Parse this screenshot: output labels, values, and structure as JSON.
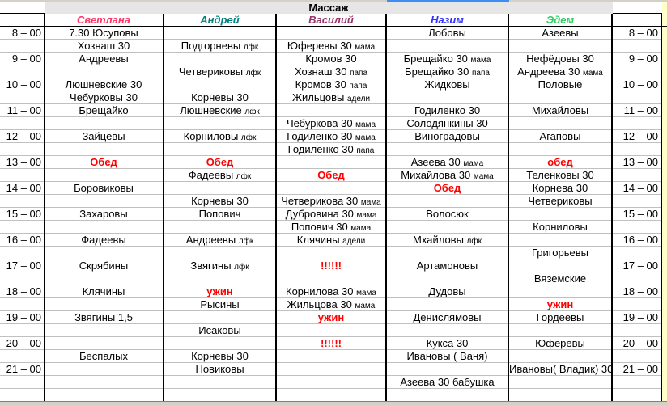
{
  "title": "Массаж",
  "accent_selected_column": "#3d8df5",
  "masseurs": [
    {
      "name": "Светлана",
      "color": "#ff3366"
    },
    {
      "name": "Андрей",
      "color": "#008080"
    },
    {
      "name": "Василий",
      "color": "#993366"
    },
    {
      "name": "Назим",
      "color": "#3333ff"
    },
    {
      "name": "Эдем",
      "color": "#33cc66"
    }
  ],
  "rows": [
    {
      "time": "8 – 00",
      "cells": [
        {
          "t": "7.30 Юсуповы"
        },
        {
          "t": ""
        },
        {
          "t": ""
        },
        {
          "t": "Лобовы"
        },
        {
          "t": "Азеевы"
        }
      ]
    },
    {
      "time": "",
      "cells": [
        {
          "t": "Хознаш 30"
        },
        {
          "t": "Подгорневы ",
          "s": "лфк"
        },
        {
          "t": "Юферевы 30 ",
          "s": "мама"
        },
        {
          "t": ""
        },
        {
          "t": ""
        }
      ]
    },
    {
      "time": "9 – 00",
      "cells": [
        {
          "t": "Андреевы"
        },
        {
          "t": ""
        },
        {
          "t": "Кромов 30"
        },
        {
          "t": "Брещайко 30 ",
          "s": "мама"
        },
        {
          "t": "Нефёдовы 30"
        }
      ]
    },
    {
      "time": "",
      "cells": [
        {
          "t": ""
        },
        {
          "t": "Четвериковы ",
          "s": "лфк"
        },
        {
          "t": "Хознаш 30 ",
          "s": "папа"
        },
        {
          "t": "Брещайко 30 ",
          "s": "папа"
        },
        {
          "t": "Андреева 30 ",
          "s": "мама"
        }
      ]
    },
    {
      "time": "10 – 00",
      "cells": [
        {
          "t": "Люшневские 30"
        },
        {
          "t": ""
        },
        {
          "t": "Кромов 30  ",
          "s": "папа"
        },
        {
          "t": "Жидковы"
        },
        {
          "t": "Половые"
        }
      ]
    },
    {
      "time": "",
      "cells": [
        {
          "t": "Чебурковы 30"
        },
        {
          "t": "Корневы 30"
        },
        {
          "t": "Жильцовы ",
          "s": "адели"
        },
        {
          "t": ""
        },
        {
          "t": ""
        }
      ]
    },
    {
      "time": "11 – 00",
      "cells": [
        {
          "t": "Брещайко"
        },
        {
          "t": "Люшневские ",
          "s": "лфк"
        },
        {
          "t": ""
        },
        {
          "t": "Годиленко 30"
        },
        {
          "t": "Михайловы"
        }
      ]
    },
    {
      "time": "",
      "cells": [
        {
          "t": ""
        },
        {
          "t": ""
        },
        {
          "t": "Чебуркова 30 ",
          "s": "мама"
        },
        {
          "t": "Солодянкины 30"
        },
        {
          "t": ""
        }
      ]
    },
    {
      "time": "12 – 00",
      "cells": [
        {
          "t": "Зайцевы"
        },
        {
          "t": "Корниловы ",
          "s": "лфк"
        },
        {
          "t": "Годиленко 30 ",
          "s": "мама"
        },
        {
          "t": "Виноградовы"
        },
        {
          "t": "Агаповы"
        }
      ]
    },
    {
      "time": "",
      "cells": [
        {
          "t": ""
        },
        {
          "t": ""
        },
        {
          "t": "Годиленко 30 ",
          "s": "папа"
        },
        {
          "t": ""
        },
        {
          "t": ""
        }
      ]
    },
    {
      "time": "13 – 00",
      "cells": [
        {
          "t": "Обед",
          "red": true
        },
        {
          "t": "Обед",
          "red": true
        },
        {
          "t": ""
        },
        {
          "t": "Азеева 30 ",
          "s": "мама"
        },
        {
          "t": "обед",
          "red": true
        }
      ]
    },
    {
      "time": "",
      "cells": [
        {
          "t": ""
        },
        {
          "t": "Фадеевы ",
          "s": "лфк"
        },
        {
          "t": "Обед",
          "red": true
        },
        {
          "t": "Михайлова 30 ",
          "s": "мама"
        },
        {
          "t": "Теленковы 30"
        }
      ]
    },
    {
      "time": "14 – 00",
      "cells": [
        {
          "t": "Боровиковы"
        },
        {
          "t": ""
        },
        {
          "t": ""
        },
        {
          "t": "Обед",
          "red": true
        },
        {
          "t": "Корнева 30"
        }
      ]
    },
    {
      "time": "",
      "cells": [
        {
          "t": ""
        },
        {
          "t": "Корневы 30"
        },
        {
          "t": "Четверикова 30 ",
          "s": "мама"
        },
        {
          "t": ""
        },
        {
          "t": "Четвериковы"
        }
      ]
    },
    {
      "time": "15 – 00",
      "cells": [
        {
          "t": "Захаровы"
        },
        {
          "t": "Попович"
        },
        {
          "t": "Дубровина 30 ",
          "s": "мама"
        },
        {
          "t": "Волосюк"
        },
        {
          "t": ""
        }
      ]
    },
    {
      "time": "",
      "cells": [
        {
          "t": ""
        },
        {
          "t": ""
        },
        {
          "t": "Попович 30 ",
          "s": "мама"
        },
        {
          "t": ""
        },
        {
          "t": "Корниловы"
        }
      ]
    },
    {
      "time": "16 – 00",
      "cells": [
        {
          "t": "Фадеевы"
        },
        {
          "t": "Андреевы ",
          "s": "лфк"
        },
        {
          "t": "Клячины ",
          "s": "адели"
        },
        {
          "t": "Мхайловы ",
          "s": "лфк"
        },
        {
          "t": ""
        }
      ]
    },
    {
      "time": "",
      "cells": [
        {
          "t": ""
        },
        {
          "t": ""
        },
        {
          "t": ""
        },
        {
          "t": ""
        },
        {
          "t": "Григорьевы"
        }
      ]
    },
    {
      "time": "17 – 00",
      "cells": [
        {
          "t": "Скрябины"
        },
        {
          "t": "Звягины ",
          "s": "лфк"
        },
        {
          "t": "!!!!!!",
          "red": true
        },
        {
          "t": "Артамоновы"
        },
        {
          "t": ""
        }
      ]
    },
    {
      "time": "",
      "cells": [
        {
          "t": ""
        },
        {
          "t": ""
        },
        {
          "t": ""
        },
        {
          "t": ""
        },
        {
          "t": "Вяземские"
        }
      ]
    },
    {
      "time": "18 – 00",
      "cells": [
        {
          "t": "Клячины"
        },
        {
          "t": "ужин",
          "red": true
        },
        {
          "t": "Корнилова 30 ",
          "s": "мама"
        },
        {
          "t": "Дудовы"
        },
        {
          "t": ""
        }
      ]
    },
    {
      "time": "",
      "cells": [
        {
          "t": ""
        },
        {
          "t": "Рысины"
        },
        {
          "t": "Жильцова 30 ",
          "s": "мама"
        },
        {
          "t": ""
        },
        {
          "t": "ужин",
          "red": true
        }
      ]
    },
    {
      "time": "19 – 00",
      "cells": [
        {
          "t": "Звягины 1,5"
        },
        {
          "t": ""
        },
        {
          "t": "ужин",
          "red": true
        },
        {
          "t": "Денислямовы"
        },
        {
          "t": "Гордеевы"
        }
      ]
    },
    {
      "time": "",
      "cells": [
        {
          "t": ""
        },
        {
          "t": "Исаковы"
        },
        {
          "t": ""
        },
        {
          "t": ""
        },
        {
          "t": ""
        }
      ]
    },
    {
      "time": "20 – 00",
      "cells": [
        {
          "t": ""
        },
        {
          "t": ""
        },
        {
          "t": "!!!!!!",
          "red": true
        },
        {
          "t": "Кукса 30"
        },
        {
          "t": "Юферевы"
        }
      ]
    },
    {
      "time": "",
      "cells": [
        {
          "t": "Беспалых"
        },
        {
          "t": "Корневы 30"
        },
        {
          "t": ""
        },
        {
          "t": "Ивановы ( Ваня)"
        },
        {
          "t": ""
        }
      ]
    },
    {
      "time": "21 – 00",
      "cells": [
        {
          "t": ""
        },
        {
          "t": "Новиковы"
        },
        {
          "t": ""
        },
        {
          "t": ""
        },
        {
          "t": "Ивановы( Владик) 30"
        }
      ]
    },
    {
      "time": "",
      "cells": [
        {
          "t": ""
        },
        {
          "t": ""
        },
        {
          "t": ""
        },
        {
          "t": "Азеева 30 бабушка"
        },
        {
          "t": ""
        }
      ]
    },
    {
      "time": "",
      "cells": [
        {
          "t": ""
        },
        {
          "t": ""
        },
        {
          "t": ""
        },
        {
          "t": ""
        },
        {
          "t": ""
        }
      ]
    }
  ]
}
